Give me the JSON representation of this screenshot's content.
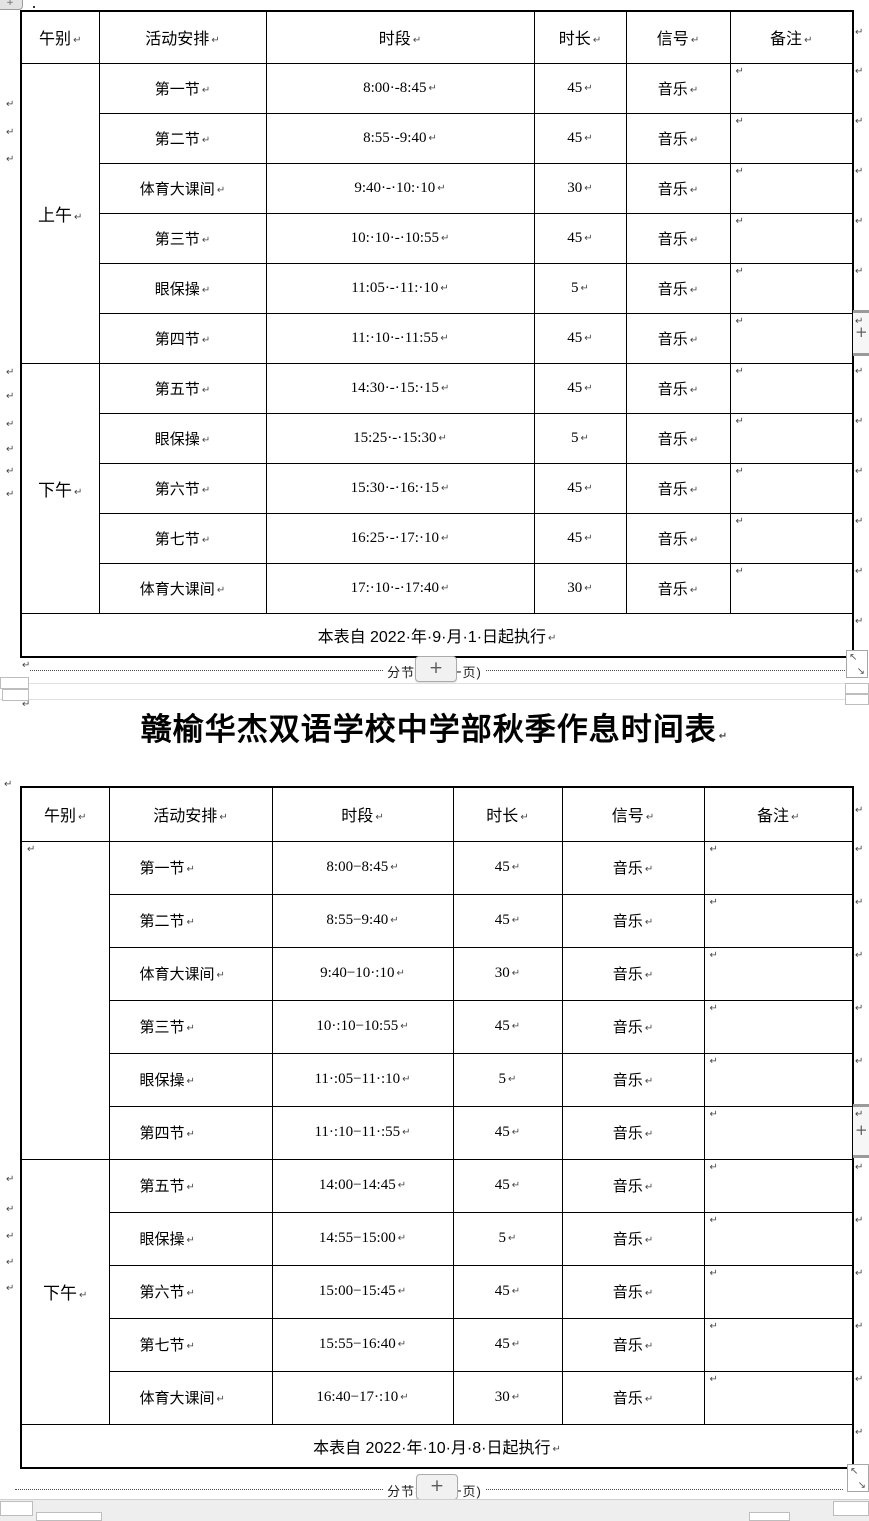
{
  "document": {
    "title": "赣榆华杰双语学校中学部秋季作息时间表",
    "section_break": {
      "label": "分节符(下一页)",
      "button": "+"
    },
    "marks": {
      "pilcrow": "↵",
      "plus": "+",
      "resize_nw": "↖",
      "resize_se": "↘"
    },
    "colors": {
      "table_border": "#000000",
      "page_background": "#ffffff",
      "mark_gray": "#474747"
    },
    "tables": [
      {
        "headers": [
          "午别",
          "活动安排",
          "时段",
          "时长",
          "信号",
          "备注"
        ],
        "groups": [
          {
            "period": "上午",
            "rows": [
              {
                "activity": "第一节",
                "time": "8:00·-8:45",
                "duration": "45",
                "signal": "音乐",
                "remark": ""
              },
              {
                "activity": "第二节",
                "time": "8:55·-9:40",
                "duration": "45",
                "signal": "音乐",
                "remark": ""
              },
              {
                "activity": "体育大课间",
                "time": "9:40·-·10:·10",
                "duration": "30",
                "signal": "音乐",
                "remark": ""
              },
              {
                "activity": "第三节",
                "time": "10:·10·-·10:55",
                "duration": "45",
                "signal": "音乐",
                "remark": ""
              },
              {
                "activity": "眼保操",
                "time": "11:05·-·11:·10",
                "duration": "5",
                "signal": "音乐",
                "remark": ""
              },
              {
                "activity": "第四节",
                "time": "11:·10·-·11:55",
                "duration": "45",
                "signal": "音乐",
                "remark": ""
              }
            ]
          },
          {
            "period": "下午",
            "rows": [
              {
                "activity": "第五节",
                "time": "14:30·-·15:·15",
                "duration": "45",
                "signal": "音乐",
                "remark": ""
              },
              {
                "activity": "眼保操",
                "time": "15:25·-·15:30",
                "duration": "5",
                "signal": "音乐",
                "remark": ""
              },
              {
                "activity": "第六节",
                "time": "15:30·-·16:·15",
                "duration": "45",
                "signal": "音乐",
                "remark": ""
              },
              {
                "activity": "第七节",
                "time": "16:25·-·17:·10",
                "duration": "45",
                "signal": "音乐",
                "remark": ""
              },
              {
                "activity": "体育大课间",
                "time": "17:·10·-·17:40",
                "duration": "30",
                "signal": "音乐",
                "remark": ""
              }
            ]
          }
        ],
        "footer": "本表自 2022·年·9·月·1·日起执行"
      },
      {
        "headers": [
          "午别",
          "活动安排",
          "时段",
          "时长",
          "信号",
          "备注"
        ],
        "groups": [
          {
            "period": "",
            "rows": [
              {
                "activity": "第一节",
                "time": "8:00−8:45",
                "duration": "45",
                "signal": "音乐",
                "remark": ""
              },
              {
                "activity": "第二节",
                "time": "8:55−9:40",
                "duration": "45",
                "signal": "音乐",
                "remark": ""
              },
              {
                "activity": "体育大课间",
                "time": "9:40−10·:10",
                "duration": "30",
                "signal": "音乐",
                "remark": ""
              },
              {
                "activity": "第三节",
                "time": "10·:10−10:55",
                "duration": "45",
                "signal": "音乐",
                "remark": ""
              },
              {
                "activity": "眼保操",
                "time": "11·:05−11·:10",
                "duration": "5",
                "signal": "音乐",
                "remark": ""
              },
              {
                "activity": "第四节",
                "time": "11·:10−11·:55",
                "duration": "45",
                "signal": "音乐",
                "remark": ""
              }
            ]
          },
          {
            "period": "下午",
            "rows": [
              {
                "activity": "第五节",
                "time": "14:00−14:45",
                "duration": "45",
                "signal": "音乐",
                "remark": ""
              },
              {
                "activity": "眼保操",
                "time": "14:55−15:00",
                "duration": "5",
                "signal": "音乐",
                "remark": ""
              },
              {
                "activity": "第六节",
                "time": "15:00−15:45",
                "duration": "45",
                "signal": "音乐",
                "remark": ""
              },
              {
                "activity": "第七节",
                "time": "15:55−16:40",
                "duration": "45",
                "signal": "音乐",
                "remark": ""
              },
              {
                "activity": "体育大课间",
                "time": "16:40−17·:10",
                "duration": "30",
                "signal": "音乐",
                "remark": ""
              }
            ]
          }
        ],
        "footer": "本表自 2022·年·10·月·8·日起执行"
      }
    ]
  }
}
